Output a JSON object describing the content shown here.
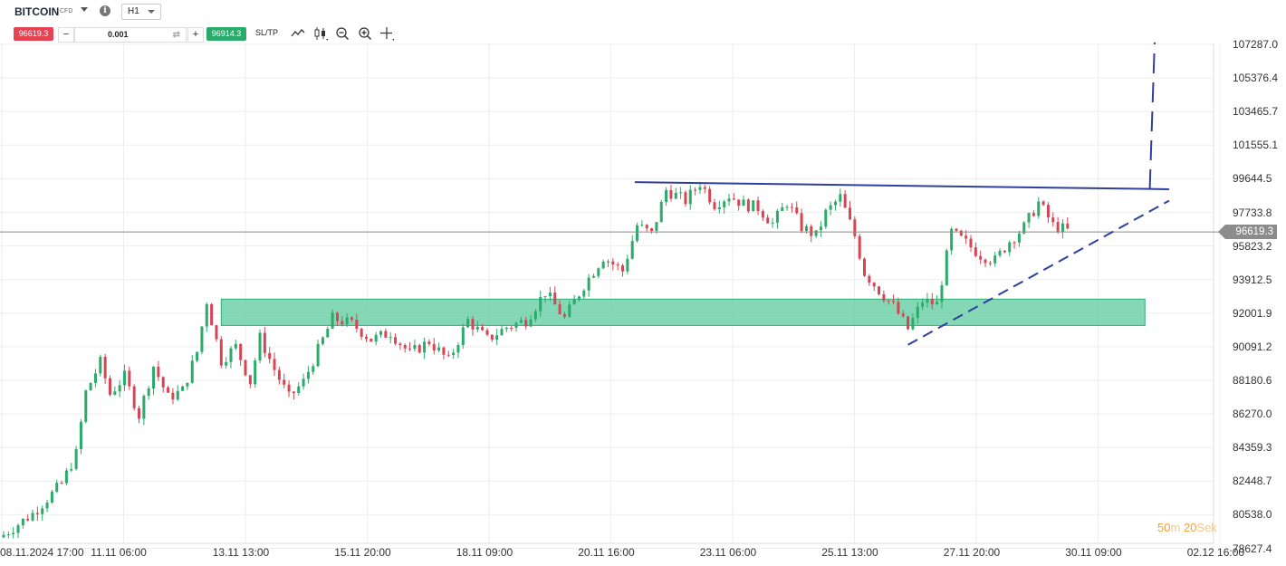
{
  "toolbar": {
    "symbol": "BITCOIN",
    "symbol_type": "CFD",
    "timeframe": "H1",
    "sell_price": "96619.3",
    "volume": "0.001",
    "buy_price": "96914.3",
    "sltp_label": "SL/TP",
    "minus_label": "−",
    "plus_label": "+",
    "info_label": "i",
    "icons": [
      "chart-type-icon",
      "candlestick-icon",
      "zoom-out-icon",
      "zoom-in-icon",
      "crosshair-icon"
    ]
  },
  "colors": {
    "bull": "#2bab6b",
    "bear": "#d64553",
    "zone": "#54c99a",
    "trend": "#2f3f9e",
    "price_line": "#888888"
  },
  "current_price": "96619.3",
  "timer": {
    "min": "50",
    "min_unit": "m",
    "sec": "20",
    "sec_unit": "Sek"
  },
  "chart_data": {
    "type": "candlestick",
    "y_ticks": [
      "107287.0",
      "105376.4",
      "103465.7",
      "101555.1",
      "99644.5",
      "97733.8",
      "95823.2",
      "93912.5",
      "92001.9",
      "90091.2",
      "88180.6",
      "86270.0",
      "84359.3",
      "82448.7",
      "80538.0",
      "78627.4"
    ],
    "x_ticks": [
      "08.11.2024 17:00",
      "11.11 06:00",
      "13.11 13:00",
      "15.11 20:00",
      "18.11 09:00",
      "20.11 16:00",
      "23.11 06:00",
      "25.11 13:00",
      "27.11 20:00",
      "30.11 09:00",
      "02.12 16:00"
    ],
    "ylim": [
      78000,
      108000
    ],
    "close_path": [
      [
        0,
        79400
      ],
      [
        6,
        80600
      ],
      [
        12,
        82300
      ],
      [
        15,
        84000
      ],
      [
        17,
        87500
      ],
      [
        20,
        89200
      ],
      [
        22,
        87400
      ],
      [
        25,
        88400
      ],
      [
        28,
        86200
      ],
      [
        31,
        89000
      ],
      [
        34,
        87200
      ],
      [
        37,
        87600
      ],
      [
        40,
        89800
      ],
      [
        42,
        92700
      ],
      [
        45,
        89300
      ],
      [
        48,
        90100
      ],
      [
        51,
        88100
      ],
      [
        53,
        90600
      ],
      [
        56,
        88800
      ],
      [
        59,
        87200
      ],
      [
        62,
        88100
      ],
      [
        65,
        89900
      ],
      [
        68,
        91700
      ],
      [
        72,
        91400
      ],
      [
        76,
        90500
      ],
      [
        80,
        90900
      ],
      [
        84,
        89700
      ],
      [
        88,
        90400
      ],
      [
        92,
        89300
      ],
      [
        96,
        91600
      ],
      [
        100,
        90500
      ],
      [
        104,
        91200
      ],
      [
        108,
        91600
      ],
      [
        112,
        93200
      ],
      [
        116,
        91700
      ],
      [
        120,
        93600
      ],
      [
        124,
        95200
      ],
      [
        128,
        94400
      ],
      [
        131,
        97000
      ],
      [
        134,
        96500
      ],
      [
        137,
        99000
      ],
      [
        141,
        98400
      ],
      [
        144,
        99400
      ],
      [
        147,
        98200
      ],
      [
        150,
        98700
      ],
      [
        153,
        98200
      ],
      [
        156,
        98000
      ],
      [
        159,
        97100
      ],
      [
        162,
        98300
      ],
      [
        165,
        96900
      ],
      [
        168,
        96400
      ],
      [
        170,
        97700
      ],
      [
        173,
        98600
      ],
      [
        176,
        96400
      ],
      [
        178,
        94300
      ],
      [
        181,
        93300
      ],
      [
        184,
        92400
      ],
      [
        187,
        91100
      ],
      [
        190,
        92700
      ],
      [
        193,
        92500
      ],
      [
        196,
        96600
      ],
      [
        199,
        96000
      ],
      [
        202,
        95300
      ],
      [
        205,
        95000
      ],
      [
        208,
        96100
      ],
      [
        211,
        96900
      ],
      [
        214,
        98300
      ],
      [
        217,
        97000
      ],
      [
        220,
        96700
      ]
    ],
    "resistance_line": {
      "from": [
        130.5,
        99450
      ],
      "to": [
        241,
        99050
      ]
    },
    "support_trendline": {
      "from": [
        187,
        90200
      ],
      "to": [
        241,
        98400
      ],
      "style": "dashed"
    },
    "projection_line": {
      "from": [
        237,
        99050
      ],
      "to": [
        238,
        107400
      ],
      "style": "dashed"
    },
    "support_zone": {
      "x0": 45,
      "x1": 236,
      "y0": 91300,
      "y1": 92800
    },
    "n_candles": 221
  }
}
